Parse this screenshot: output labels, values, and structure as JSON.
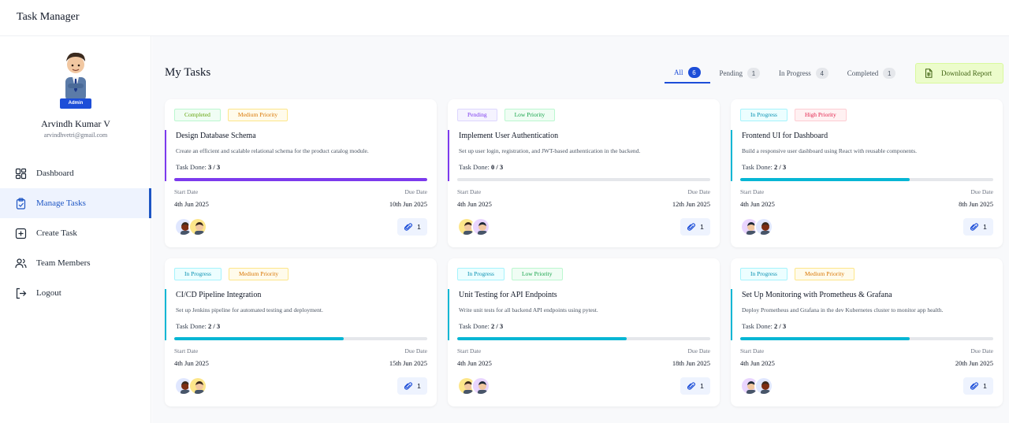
{
  "app": {
    "title": "Task Manager"
  },
  "profile": {
    "role": "Admin",
    "name": "Arvindh Kumar V",
    "email": "arvindhvetri@gmail.com"
  },
  "menu": [
    {
      "label": "Dashboard",
      "icon": "dashboard-icon",
      "active": false
    },
    {
      "label": "Manage Tasks",
      "icon": "clipboard-check-icon",
      "active": true
    },
    {
      "label": "Create Task",
      "icon": "plus-square-icon",
      "active": false
    },
    {
      "label": "Team Members",
      "icon": "users-icon",
      "active": false
    },
    {
      "label": "Logout",
      "icon": "logout-icon",
      "active": false
    }
  ],
  "page": {
    "title": "My Tasks"
  },
  "tabs": [
    {
      "label": "All",
      "count": "6",
      "active": true
    },
    {
      "label": "Pending",
      "count": "1",
      "active": false
    },
    {
      "label": "In Progress",
      "count": "4",
      "active": false
    },
    {
      "label": "Completed",
      "count": "1",
      "active": false
    }
  ],
  "download": {
    "label": "Download Report",
    "icon": "file-spreadsheet-icon"
  },
  "labels": {
    "task_done": "Task Done:",
    "start_date": "Start Date",
    "due_date": "Due Date"
  },
  "colors": {
    "completed": "#7c3aed",
    "pending": "#7c3aed",
    "in_progress": "#06b6d4",
    "high": "#e11d48",
    "medium": "#f59e0b",
    "low": "#16a34a",
    "accent": "#1d4ed8"
  },
  "tasks": [
    {
      "status": "Completed",
      "priority": "Medium Priority",
      "title": "Design Database Schema",
      "description": "Create an efficient and scalable relational schema for the product catalog module.",
      "done": "3 / 3",
      "progress": 1.0,
      "start_date": "4th Jun 2025",
      "due_date": "10th Jun 2025",
      "attachments": "1"
    },
    {
      "status": "Pending",
      "priority": "Low Priority",
      "title": "Implement User Authentication",
      "description": "Set up user login, registration, and JWT-based authentication in the backend.",
      "done": "0 / 3",
      "progress": 0.0,
      "start_date": "4th Jun 2025",
      "due_date": "12th Jun 2025",
      "attachments": "1"
    },
    {
      "status": "In Progress",
      "priority": "High Priority",
      "title": "Frontend UI for Dashboard",
      "description": "Build a responsive user dashboard using React with reusable components.",
      "done": "2 / 3",
      "progress": 0.67,
      "start_date": "4th Jun 2025",
      "due_date": "8th Jun 2025",
      "attachments": "1"
    },
    {
      "status": "In Progress",
      "priority": "Medium Priority",
      "title": "CI/CD Pipeline Integration",
      "description": "Set up Jenkins pipeline for automated testing and deployment.",
      "done": "2 / 3",
      "progress": 0.67,
      "start_date": "4th Jun 2025",
      "due_date": "15th Jun 2025",
      "attachments": "1"
    },
    {
      "status": "In Progress",
      "priority": "Low Priority",
      "title": "Unit Testing for API Endpoints",
      "description": "Write unit tests for all backend API endpoints using pytest.",
      "done": "2 / 3",
      "progress": 0.67,
      "start_date": "4th Jun 2025",
      "due_date": "18th Jun 2025",
      "attachments": "1"
    },
    {
      "status": "In Progress",
      "priority": "Medium Priority",
      "title": "Set Up Monitoring with Prometheus & Grafana",
      "description": "Deploy Prometheus and Grafana in the dev Kubernetes cluster to monitor app health.",
      "done": "2 / 3",
      "progress": 0.67,
      "start_date": "4th Jun 2025",
      "due_date": "20th Jun 2025",
      "attachments": "1"
    }
  ]
}
